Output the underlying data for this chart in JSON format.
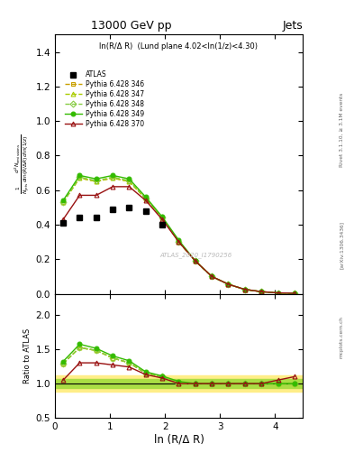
{
  "title_top": "13000 GeV pp",
  "title_right": "Jets",
  "plot_title": "ln(R/Δ R)  (Lund plane 4.02<ln(1/z)<4.30)",
  "watermark": "ATLAS_2020_I1790256",
  "xlabel": "ln (R/Δ R)",
  "xdata": [
    0.15,
    0.45,
    0.75,
    1.05,
    1.35,
    1.65,
    1.95,
    2.25,
    2.55,
    2.85,
    3.15,
    3.45,
    3.75,
    4.05,
    4.35
  ],
  "atlas_y": [
    0.41,
    0.44,
    0.44,
    0.49,
    0.5,
    0.48,
    0.4,
    null,
    null,
    null,
    null,
    null,
    null,
    null,
    null
  ],
  "py346_y": [
    0.53,
    0.67,
    0.65,
    0.67,
    0.65,
    0.55,
    0.44,
    0.3,
    0.19,
    0.1,
    0.055,
    0.025,
    0.012,
    0.005,
    0.003
  ],
  "py347_y": [
    0.53,
    0.67,
    0.65,
    0.67,
    0.65,
    0.55,
    0.44,
    0.3,
    0.19,
    0.1,
    0.055,
    0.025,
    0.012,
    0.005,
    0.003
  ],
  "py348_y": [
    0.53,
    0.675,
    0.655,
    0.675,
    0.655,
    0.553,
    0.44,
    0.3,
    0.19,
    0.1,
    0.055,
    0.025,
    0.012,
    0.005,
    0.003
  ],
  "py349_y": [
    0.54,
    0.685,
    0.665,
    0.685,
    0.665,
    0.56,
    0.445,
    0.31,
    0.19,
    0.1,
    0.055,
    0.025,
    0.012,
    0.005,
    0.003
  ],
  "py370_y": [
    0.43,
    0.57,
    0.57,
    0.62,
    0.62,
    0.54,
    0.43,
    0.3,
    0.19,
    0.1,
    0.055,
    0.025,
    0.012,
    0.005,
    0.003
  ],
  "ratio_py346": [
    1.29,
    1.52,
    1.48,
    1.37,
    1.3,
    1.15,
    1.1,
    1.0,
    1.0,
    1.0,
    1.0,
    1.0,
    1.0,
    1.0,
    1.0
  ],
  "ratio_py347": [
    1.29,
    1.52,
    1.48,
    1.37,
    1.3,
    1.15,
    1.1,
    1.0,
    1.0,
    1.0,
    1.0,
    1.0,
    1.0,
    1.0,
    1.0
  ],
  "ratio_py348": [
    1.29,
    1.52,
    1.48,
    1.37,
    1.3,
    1.15,
    1.1,
    1.0,
    1.0,
    1.0,
    1.0,
    1.0,
    1.0,
    1.0,
    1.0
  ],
  "ratio_py349": [
    1.32,
    1.57,
    1.51,
    1.4,
    1.33,
    1.17,
    1.11,
    1.03,
    1.0,
    1.0,
    1.0,
    1.0,
    1.0,
    1.0,
    1.0
  ],
  "ratio_py370": [
    1.05,
    1.3,
    1.3,
    1.27,
    1.24,
    1.13,
    1.08,
    1.0,
    1.0,
    1.0,
    1.0,
    1.0,
    1.0,
    1.05,
    1.1
  ],
  "atlas_err_yellow": 0.12,
  "atlas_err_green": 0.06,
  "color_346": "#c8a000",
  "color_347": "#aacc00",
  "color_348": "#88cc44",
  "color_349": "#33bb00",
  "color_370": "#991111",
  "xlim": [
    0.0,
    4.5
  ],
  "ylim_main": [
    0.0,
    1.5
  ],
  "ylim_ratio": [
    0.5,
    2.3
  ],
  "yticks_main": [
    0.0,
    0.2,
    0.4,
    0.6,
    0.8,
    1.0,
    1.2,
    1.4
  ],
  "yticks_ratio": [
    0.5,
    1.0,
    1.5,
    2.0
  ],
  "xticks": [
    0,
    1,
    2,
    3,
    4
  ]
}
